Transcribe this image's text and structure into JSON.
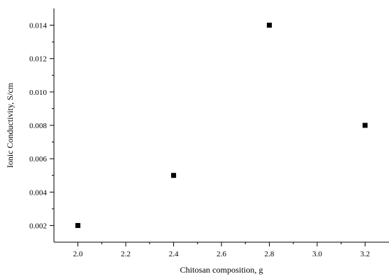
{
  "chart_data": {
    "type": "scatter",
    "title": "",
    "xlabel": "Chitosan composition, g",
    "ylabel": "Ionic Conductivity, S/cm",
    "xlim": [
      1.9,
      3.3
    ],
    "ylim": [
      0.001,
      0.015
    ],
    "x_ticks": [
      "2.0",
      "2.2",
      "2.4",
      "2.6",
      "2.8",
      "3.0",
      "3.2"
    ],
    "y_ticks": [
      "0.002",
      "0.004",
      "0.006",
      "0.008",
      "0.010",
      "0.012",
      "0.014"
    ],
    "grid": false,
    "legend": "none",
    "marker": "square",
    "marker_color": "#000000",
    "series": [
      {
        "x": [
          2.0,
          2.4,
          2.8,
          3.2
        ],
        "y": [
          0.002,
          0.005,
          0.014,
          0.008
        ]
      }
    ]
  }
}
